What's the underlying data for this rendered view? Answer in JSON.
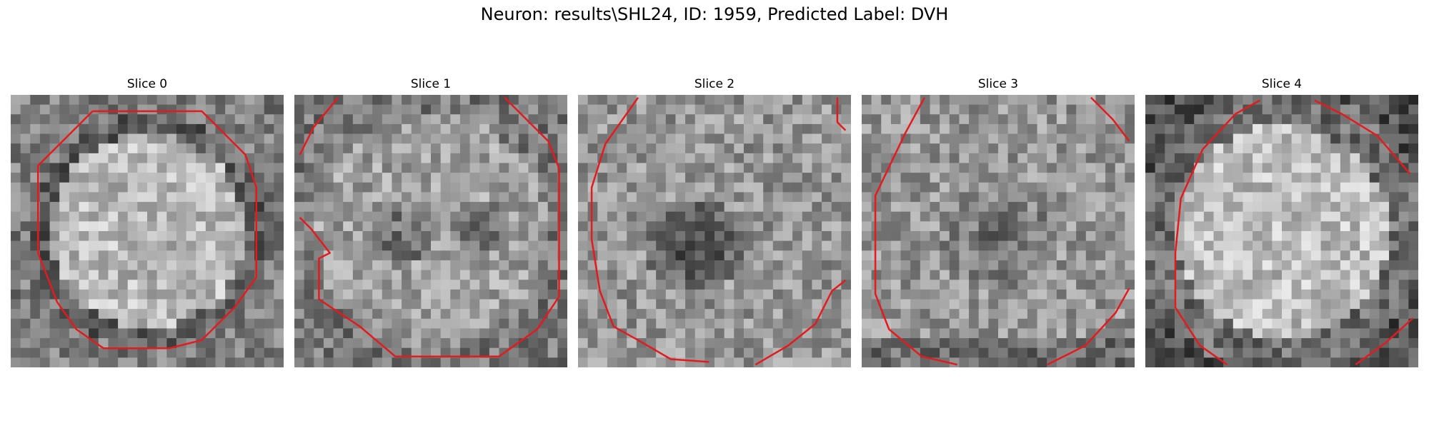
{
  "figure": {
    "title": "Neuron: results\\SHL24, ID: 1959, Predicted Label: DVH"
  },
  "contour_color": "#e41a1c",
  "image_grid_size": 28,
  "panels": [
    {
      "title": "Slice 0",
      "pattern": "bright_disc"
    },
    {
      "title": "Slice 1",
      "pattern": "disc_with_dark_patches"
    },
    {
      "title": "Slice 2",
      "pattern": "dark_center"
    },
    {
      "title": "Slice 3",
      "pattern": "dark_center_faint"
    },
    {
      "title": "Slice 4",
      "pattern": "bright_disc_dark_corners"
    }
  ]
}
